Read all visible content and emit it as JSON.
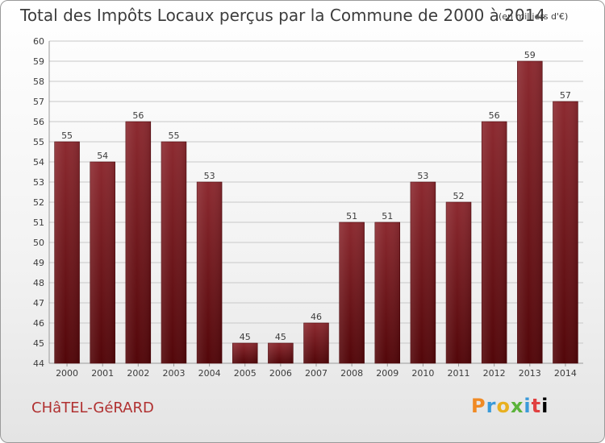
{
  "header": {
    "title": "Total des Impôts Locaux perçus par la Commune de 2000 à 2014",
    "unit": "(en milliers d'€)"
  },
  "footer": {
    "commune": "CHâTEL-GéRARD",
    "logo": "Proxiti"
  },
  "colors": {
    "bar_dark": "#5c0a0e",
    "bar_light": "#9a3a40",
    "grid": "#c8c8c8",
    "text": "#3c3c3c",
    "commune": "#b03030"
  },
  "chart_data": {
    "type": "bar",
    "title": "Total des Impôts Locaux perçus par la Commune de 2000 à 2014",
    "xlabel": "",
    "ylabel": "",
    "categories": [
      "2000",
      "2001",
      "2002",
      "2003",
      "2004",
      "2005",
      "2006",
      "2007",
      "2008",
      "2009",
      "2010",
      "2011",
      "2012",
      "2013",
      "2014"
    ],
    "values": [
      55,
      54,
      56,
      55,
      53,
      45,
      45,
      46,
      51,
      51,
      53,
      52,
      56,
      59,
      57
    ],
    "ylim": [
      44,
      60
    ],
    "yticks": [
      44,
      45,
      46,
      47,
      48,
      49,
      50,
      51,
      52,
      53,
      54,
      55,
      56,
      57,
      58,
      59,
      60
    ],
    "grid": true,
    "data_labels": true
  }
}
